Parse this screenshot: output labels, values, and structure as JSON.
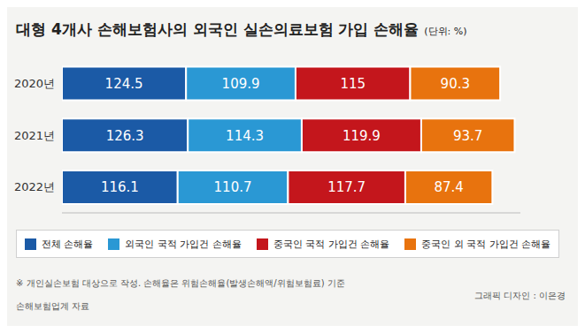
{
  "chart_data": {
    "type": "bar",
    "title": "대형 4개사 손해보험사의 외국인 실손의료보험 가입 손해율",
    "subtitle": "(단위: %)",
    "orientation": "horizontal",
    "stacked": true,
    "data_labels": true,
    "tick_labels": "y",
    "legend": "bottom",
    "categories": [
      "2020년",
      "2021년",
      "2022년"
    ],
    "xlim": [
      0,
      460
    ],
    "series": [
      {
        "name": "전체 손해율",
        "color": "#1b5aa6",
        "values": [
          124.5,
          126.3,
          116.1
        ]
      },
      {
        "name": "외국인 국적 가입건 손해율",
        "color": "#2a98d4",
        "values": [
          109.9,
          114.3,
          110.7
        ]
      },
      {
        "name": "중국인 국적 가입건 손해율",
        "color": "#c4161c",
        "values": [
          115.0,
          119.9,
          117.7
        ]
      },
      {
        "name": "중국인 외 국적 가입건 손해율",
        "color": "#e8730e",
        "values": [
          90.3,
          93.7,
          87.4
        ]
      }
    ],
    "annotations": [
      "※ 개인실손보험 대상으로 작성. 손해율은 위험손해율(발생손해액/위험보험료) 기준",
      "손해보험업계 자료",
      "그래픽 디자인 : 이은경"
    ]
  }
}
